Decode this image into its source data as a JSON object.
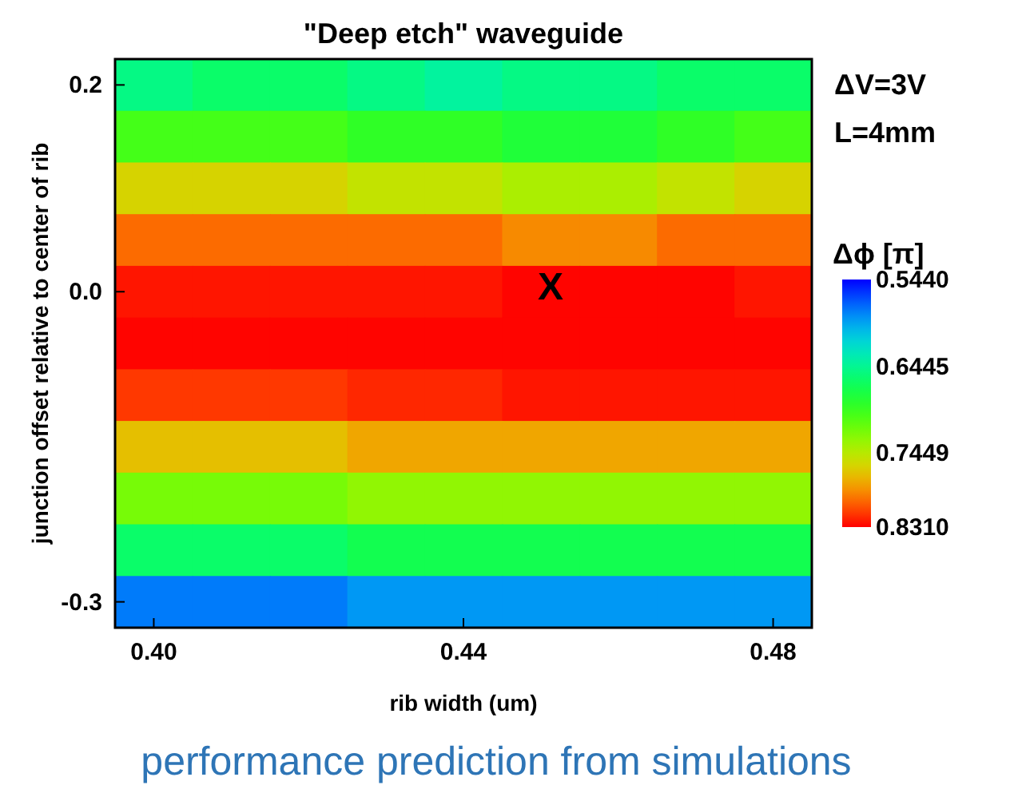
{
  "chart_data": {
    "type": "heatmap",
    "title": "\"Deep etch\" waveguide",
    "xlabel": "rib width (um)",
    "ylabel": "junction offset relative to center of rib",
    "clabel": "Δϕ [π]",
    "categories": [
      "0.40",
      null,
      null,
      null,
      "0.44",
      null,
      null,
      null,
      "0.48"
    ],
    "y_categories": [
      "0.2",
      null,
      null,
      null,
      "0.0",
      null,
      null,
      null,
      null,
      null,
      "-0.3"
    ],
    "clim": [
      0.544,
      0.831
    ],
    "cticks": [
      {
        "value": 0.544,
        "label": "0.5440"
      },
      {
        "value": 0.6445,
        "label": "0.6445"
      },
      {
        "value": 0.7449,
        "label": "0.7449"
      },
      {
        "value": 0.831,
        "label": "0.8310"
      }
    ],
    "cells": [
      [
        0.65,
        0.66,
        0.66,
        0.65,
        0.64,
        0.65,
        0.65,
        0.66,
        0.66
      ],
      [
        0.7,
        0.7,
        0.7,
        0.69,
        0.69,
        0.68,
        0.68,
        0.69,
        0.7
      ],
      [
        0.76,
        0.76,
        0.76,
        0.75,
        0.75,
        0.74,
        0.74,
        0.75,
        0.76
      ],
      [
        0.8,
        0.8,
        0.8,
        0.8,
        0.8,
        0.79,
        0.79,
        0.8,
        0.8
      ],
      [
        0.825,
        0.825,
        0.825,
        0.825,
        0.825,
        0.83,
        0.83,
        0.83,
        0.825
      ],
      [
        0.83,
        0.83,
        0.83,
        0.83,
        0.83,
        0.83,
        0.83,
        0.83,
        0.83
      ],
      [
        0.815,
        0.815,
        0.815,
        0.82,
        0.82,
        0.825,
        0.825,
        0.825,
        0.825
      ],
      [
        0.77,
        0.77,
        0.77,
        0.78,
        0.78,
        0.78,
        0.78,
        0.78,
        0.78
      ],
      [
        0.72,
        0.72,
        0.72,
        0.73,
        0.73,
        0.73,
        0.73,
        0.73,
        0.73
      ],
      [
        0.66,
        0.66,
        0.66,
        0.67,
        0.67,
        0.67,
        0.67,
        0.67,
        0.67
      ],
      [
        0.58,
        0.58,
        0.58,
        0.59,
        0.59,
        0.59,
        0.59,
        0.59,
        0.59
      ]
    ],
    "annotations": [
      "ΔV=3V",
      "L=4mm",
      "X",
      "performance prediction from simulations"
    ]
  }
}
